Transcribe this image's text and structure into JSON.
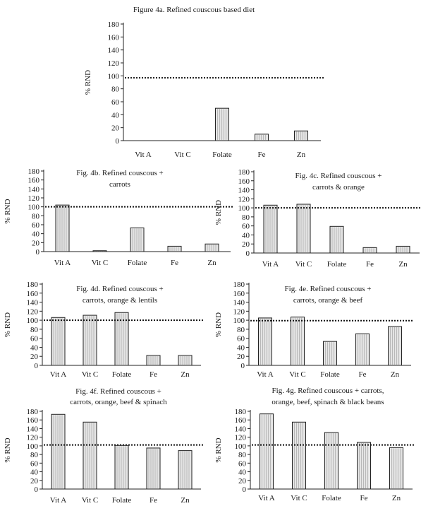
{
  "y_axis_label": "% RND",
  "chart_data": [
    {
      "id": "4a",
      "type": "bar",
      "title": [
        "Figure 4a. Refined couscous based diet"
      ],
      "ylabel": "% RND",
      "categories": [
        "Vit A",
        "Vit C",
        "Folate",
        "Fe",
        "Zn"
      ],
      "values": [
        0,
        0,
        50,
        10,
        15
      ],
      "reference_line": 97,
      "ylim": [
        0,
        180
      ],
      "yticks": [
        0,
        20,
        40,
        60,
        80,
        100,
        120,
        140,
        160,
        180
      ]
    },
    {
      "id": "4b",
      "type": "bar",
      "title": [
        "Fig. 4b. Refined couscous +",
        "carrots"
      ],
      "ylabel": "% RND",
      "categories": [
        "Vit A",
        "Vit C",
        "Folate",
        "Fe",
        "Zn"
      ],
      "values": [
        104,
        2,
        53,
        12,
        17
      ],
      "reference_line": 100,
      "ylim": [
        0,
        180
      ],
      "yticks": [
        0,
        20,
        40,
        60,
        80,
        100,
        120,
        140,
        160,
        180
      ]
    },
    {
      "id": "4c",
      "type": "bar",
      "title": [
        "Fig. 4c. Refined couscous +",
        "carrots & orange"
      ],
      "ylabel": "% RND",
      "categories": [
        "Vit A",
        "Vit C",
        "Folate",
        "Fe",
        "Zn"
      ],
      "values": [
        106,
        108,
        59,
        12,
        15
      ],
      "reference_line": 100,
      "ylim": [
        0,
        180
      ],
      "yticks": [
        0,
        20,
        40,
        60,
        80,
        100,
        120,
        140,
        160,
        180
      ]
    },
    {
      "id": "4d",
      "type": "bar",
      "title": [
        "Fig. 4d. Refined couscous +",
        "carrots, orange & lentils"
      ],
      "ylabel": "% RND",
      "categories": [
        "Vit A",
        "Vit C",
        "Folate",
        "Fe",
        "Zn"
      ],
      "values": [
        106,
        111,
        117,
        22,
        22
      ],
      "reference_line": 100,
      "ylim": [
        0,
        180
      ],
      "yticks": [
        0,
        20,
        40,
        60,
        80,
        100,
        120,
        140,
        160,
        180
      ]
    },
    {
      "id": "4e",
      "type": "bar",
      "title": [
        "Fig. 4e. Refined couscous +",
        "carrots, orange & beef"
      ],
      "ylabel": "% RND",
      "categories": [
        "Vit A",
        "Vit C",
        "Folate",
        "Fe",
        "Zn"
      ],
      "values": [
        105,
        107,
        53,
        70,
        86
      ],
      "reference_line": 99,
      "ylim": [
        0,
        180
      ],
      "yticks": [
        0,
        20,
        40,
        60,
        80,
        100,
        120,
        140,
        160,
        180
      ]
    },
    {
      "id": "4f",
      "type": "bar",
      "title": [
        "Fig. 4f. Refined couscous +",
        "carrots, orange, beef & spinach"
      ],
      "ylabel": "% RND",
      "categories": [
        "Vit A",
        "Vit C",
        "Folate",
        "Fe",
        "Zn"
      ],
      "values": [
        173,
        155,
        101,
        95,
        89
      ],
      "reference_line": 102,
      "ylim": [
        0,
        180
      ],
      "yticks": [
        0,
        20,
        40,
        60,
        80,
        100,
        120,
        140,
        160,
        180
      ]
    },
    {
      "id": "4g",
      "type": "bar",
      "title": [
        "Fig. 4g. Refined couscous + carrots,",
        "orange, beef, spinach & black beans"
      ],
      "ylabel": "% RND",
      "categories": [
        "Vit A",
        "Vit C",
        "Folate",
        "Fe",
        "Zn"
      ],
      "values": [
        174,
        155,
        131,
        108,
        96
      ],
      "reference_line": 102,
      "ylim": [
        0,
        180
      ],
      "yticks": [
        0,
        20,
        40,
        60,
        80,
        100,
        120,
        140,
        160,
        180
      ]
    }
  ]
}
